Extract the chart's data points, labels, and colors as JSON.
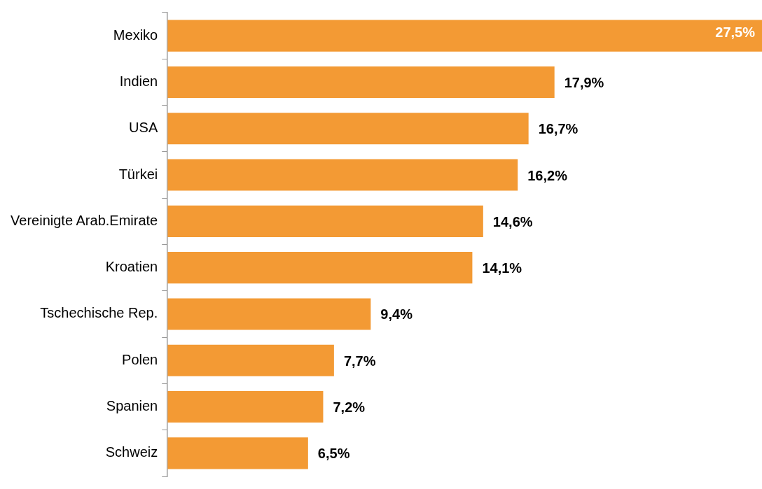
{
  "chart_data": {
    "type": "bar",
    "orientation": "horizontal",
    "categories": [
      "Mexiko",
      "Indien",
      "USA",
      "Türkei",
      "Vereinigte Arab.Emirate",
      "Kroatien",
      "Tschechische Rep.",
      "Polen",
      "Spanien",
      "Schweiz"
    ],
    "values": [
      27.5,
      17.9,
      16.7,
      16.2,
      14.6,
      14.1,
      9.4,
      7.7,
      7.2,
      6.5
    ],
    "value_labels": [
      "27,5%",
      "17,9%",
      "16,7%",
      "16,2%",
      "14,6%",
      "14,1%",
      "9,4%",
      "7,7%",
      "7,2%",
      "6,5%"
    ],
    "color": "#f39a34",
    "grid": false,
    "legend": false
  }
}
